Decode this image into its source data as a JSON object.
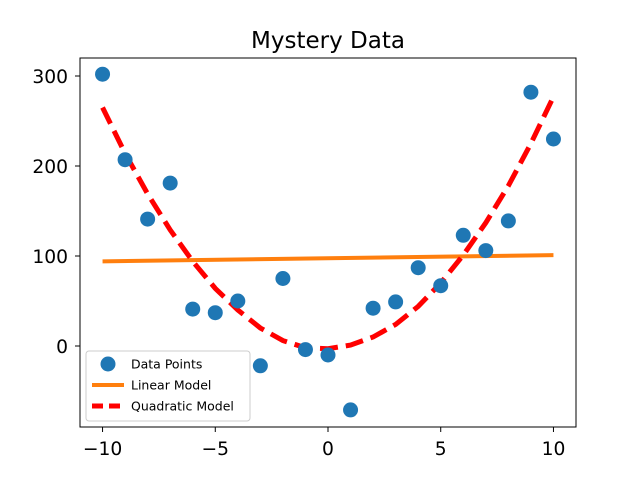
{
  "chart_data": {
    "type": "scatter",
    "title": "Mystery Data",
    "xlabel": "",
    "ylabel": "",
    "xlim": [
      -11,
      11
    ],
    "ylim": [
      -90,
      320
    ],
    "xticks": [
      -10,
      -5,
      0,
      5,
      10
    ],
    "xtick_labels": [
      "−10",
      "−5",
      "0",
      "5",
      "10"
    ],
    "yticks": [
      0,
      100,
      200,
      300
    ],
    "ytick_labels": [
      "0",
      "100",
      "200",
      "300"
    ],
    "grid": false,
    "legend_position": "lower-left",
    "series": [
      {
        "name": "Data Points",
        "kind": "scatter",
        "color": "#1f77b4",
        "x": [
          -10,
          -9,
          -8,
          -7,
          -6,
          -5,
          -4,
          -3,
          -2,
          -1,
          0,
          1,
          2,
          3,
          4,
          5,
          6,
          7,
          8,
          9,
          10
        ],
        "y": [
          302,
          207,
          141,
          181,
          41,
          37,
          50,
          -22,
          75,
          -4,
          -10,
          -71,
          42,
          49,
          87,
          67,
          123,
          106,
          139,
          282,
          230
        ]
      },
      {
        "name": "Linear Model",
        "kind": "line",
        "color": "#ff7f0e",
        "style": "solid",
        "x": [
          -10,
          10
        ],
        "y": [
          94,
          101
        ]
      },
      {
        "name": "Quadratic Model",
        "kind": "line",
        "color": "#ff0000",
        "style": "dashed",
        "x": [
          -10,
          -9,
          -8,
          -7,
          -6,
          -5,
          -4,
          -3,
          -2,
          -1,
          0,
          1,
          2,
          3,
          4,
          5,
          6,
          7,
          8,
          9,
          10
        ],
        "y": [
          265,
          214,
          169,
          129,
          94,
          64,
          40,
          20,
          6,
          -2,
          -3,
          1,
          10,
          24,
          44,
          70,
          101,
          137,
          178,
          225,
          277
        ]
      }
    ]
  }
}
